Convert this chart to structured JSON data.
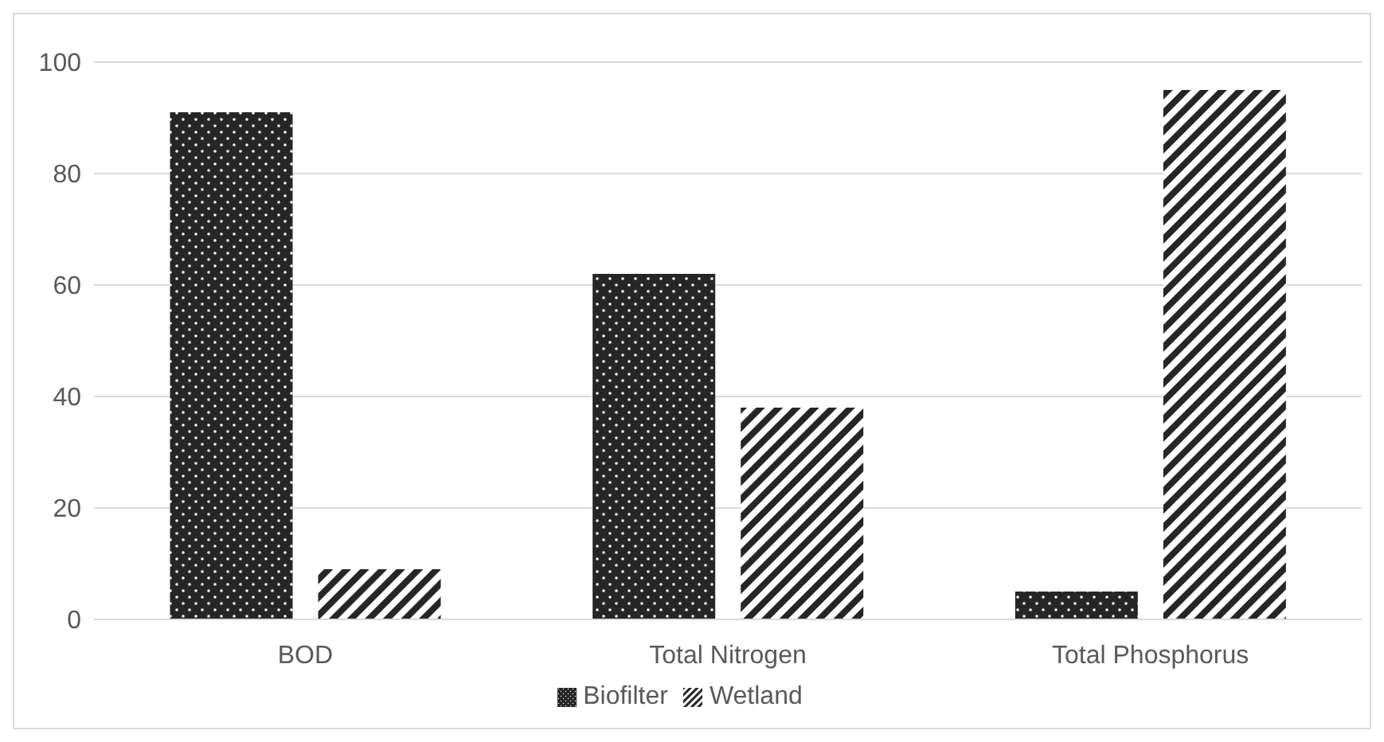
{
  "chart_data": {
    "type": "bar",
    "categories": [
      "BOD",
      "Total Nitrogen",
      "Total Phosphorus"
    ],
    "series": [
      {
        "name": "Biofilter",
        "color": "#262626",
        "values": [
          91,
          62,
          5
        ]
      },
      {
        "name": "Wetland",
        "color": "#262626",
        "values": [
          9,
          38,
          95
        ]
      }
    ],
    "ylim": [
      0,
      100
    ],
    "yticks": [
      0,
      20,
      40,
      60,
      80,
      100
    ],
    "grid": "y",
    "legend": "bottom"
  }
}
